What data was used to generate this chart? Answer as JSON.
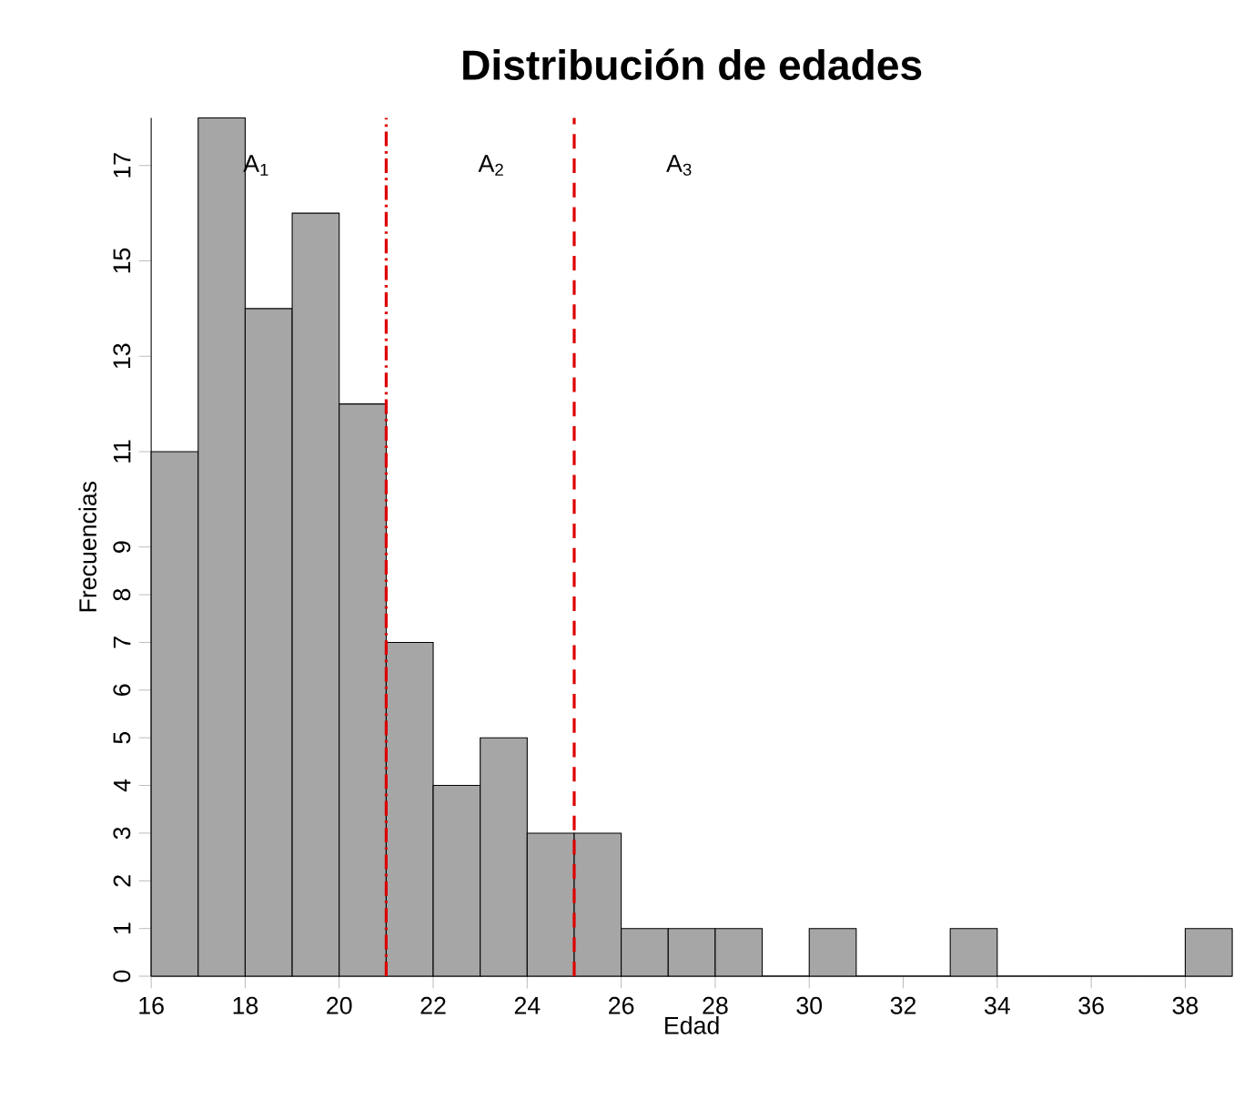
{
  "chart_data": {
    "type": "histogram",
    "title": "Distribución de edades",
    "xlabel": "Edad",
    "ylabel": "Frecuencias",
    "bins": [
      16,
      17,
      18,
      19,
      20,
      21,
      22,
      23,
      24,
      25,
      26,
      27,
      28,
      29,
      30,
      31,
      32,
      33,
      34,
      35,
      36,
      37,
      38,
      39
    ],
    "values": [
      11,
      18,
      14,
      16,
      12,
      7,
      4,
      5,
      3,
      3,
      1,
      1,
      1,
      0,
      1,
      0,
      0,
      1,
      0,
      0,
      0,
      0,
      1
    ],
    "color": "#a6a6a6",
    "xlim": [
      16,
      39
    ],
    "xticks": [
      16,
      18,
      20,
      22,
      24,
      26,
      28,
      30,
      32,
      34,
      36,
      38
    ],
    "ylim": [
      0,
      18
    ],
    "yticks": [
      0,
      1,
      2,
      3,
      4,
      5,
      6,
      7,
      8,
      9,
      11,
      13,
      15,
      17
    ],
    "ref_lines": [
      {
        "axis": "x",
        "value": 21,
        "color": "#dd0000",
        "line_style": "dashdot"
      },
      {
        "axis": "x",
        "value": 25,
        "color": "#dd0000",
        "line_style": "dashed"
      }
    ],
    "annotations": [
      "A$_{1}$",
      "A$_{2}$",
      "A$_{3}$"
    ],
    "grid": false
  }
}
